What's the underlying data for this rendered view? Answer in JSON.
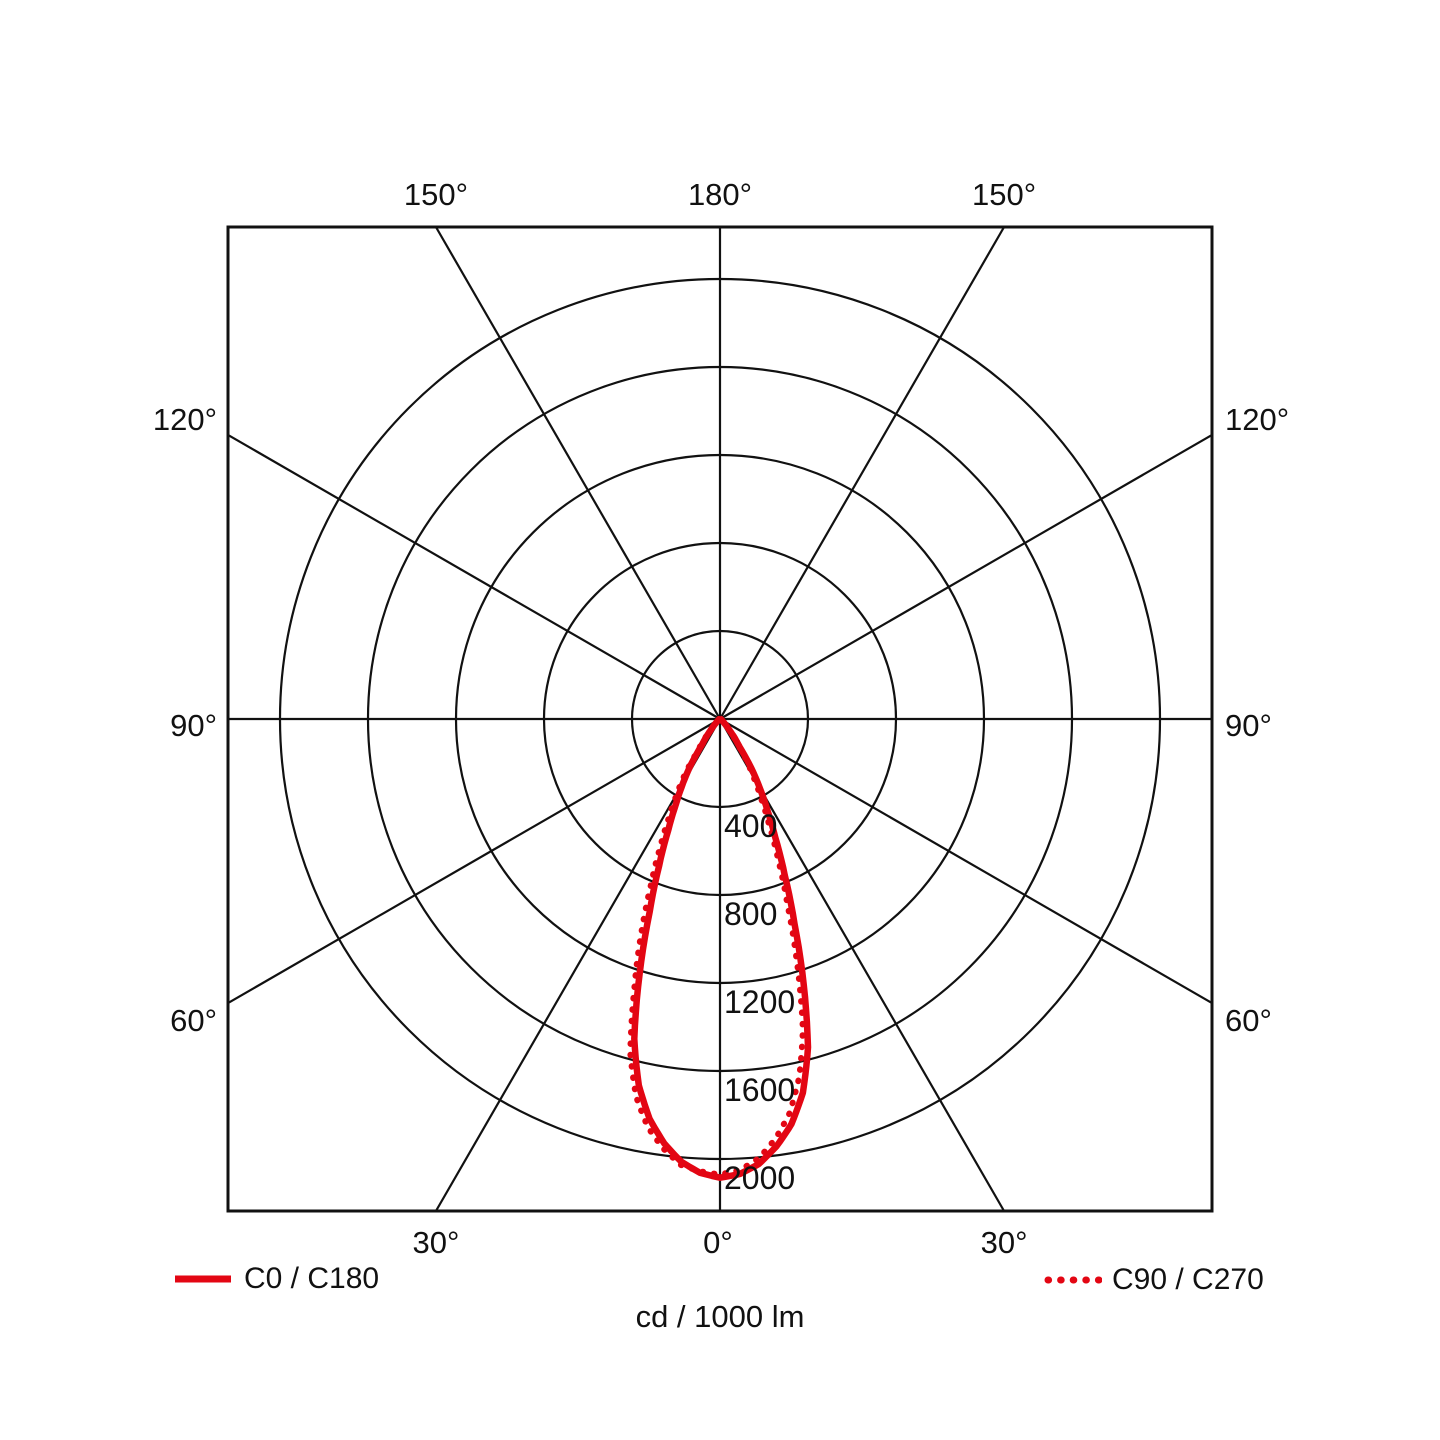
{
  "chart_data": {
    "type": "polar",
    "title": "",
    "unit_label": "cd / 1000 lm",
    "radial_ticks": [
      400,
      800,
      1200,
      1600,
      2000
    ],
    "radial_axis_max": 2000,
    "angle_step_deg": 30,
    "angle_tick_labels": {
      "top": [
        "150°",
        "180°",
        "150°"
      ],
      "left": [
        "120°",
        "90°",
        "60°"
      ],
      "right": [
        "120°",
        "90°",
        "60°"
      ],
      "bottom": [
        "30°",
        "0°",
        "30°"
      ]
    },
    "gamma_deg": [
      0,
      2.5,
      5,
      7.5,
      10,
      12.5,
      15,
      17.5,
      20,
      22.5,
      25,
      27.5,
      30,
      32.5,
      35,
      40,
      45,
      50,
      60,
      75,
      90
    ],
    "series": [
      {
        "name": "C0 / C180",
        "style": "solid",
        "right_half": "C0",
        "left_half": "C180",
        "C0": [
          2085,
          2070,
          2030,
          1960,
          1870,
          1740,
          1545,
          1265,
          990,
          770,
          595,
          465,
          360,
          265,
          155,
          70,
          30,
          15,
          8,
          5,
          3
        ],
        "C180": [
          2085,
          2065,
          2020,
          1945,
          1845,
          1705,
          1505,
          1215,
          935,
          725,
          555,
          430,
          335,
          245,
          140,
          65,
          28,
          14,
          7,
          4,
          3
        ]
      },
      {
        "name": "C90 / C270",
        "style": "dotted",
        "right_half": "C90",
        "left_half": "C270",
        "C90": [
          2070,
          2052,
          2005,
          1925,
          1820,
          1665,
          1455,
          1165,
          895,
          690,
          525,
          400,
          305,
          225,
          130,
          60,
          25,
          12,
          6,
          4,
          3
        ],
        "C270": [
          2070,
          2058,
          2035,
          1970,
          1885,
          1760,
          1575,
          1300,
          1055,
          825,
          645,
          500,
          390,
          295,
          175,
          78,
          33,
          16,
          8,
          5,
          3
        ]
      }
    ],
    "colors": {
      "curve": "#e30613",
      "grid": "#111111",
      "text": "#111111"
    }
  },
  "legend": {
    "items": [
      {
        "label": "C0 / C180",
        "style": "solid"
      },
      {
        "label": "C90 / C270",
        "style": "dotted"
      }
    ]
  }
}
